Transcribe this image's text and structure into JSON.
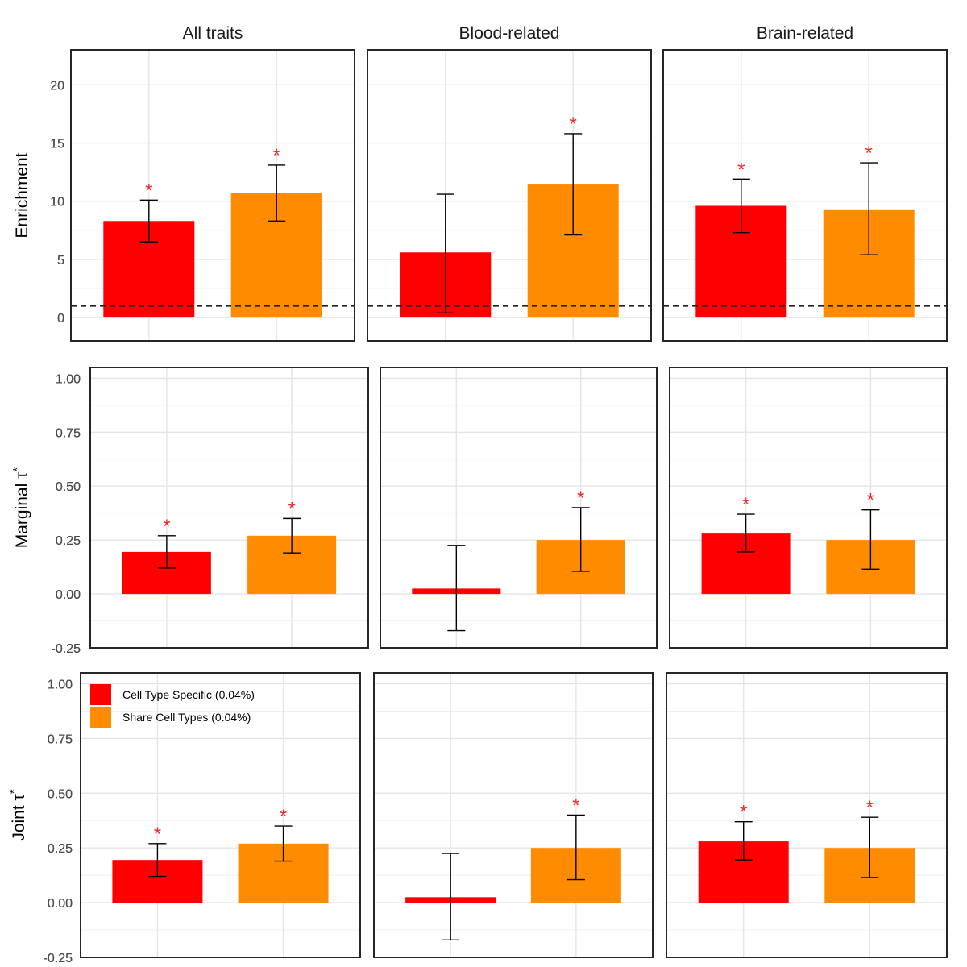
{
  "chart_data": {
    "type": "bar",
    "facet_columns": [
      "All traits",
      "Blood-related",
      "Brain-related"
    ],
    "categories": [
      "Cell Type Specific (0.04%)",
      "Share Cell Types (0.04%)"
    ],
    "colors": [
      "#ff0000",
      "#ff8c00"
    ],
    "star_color": "#ee2c2c",
    "legend": {
      "placement": "top-left of bottom-left panel",
      "entries": [
        {
          "label": "Cell Type Specific (0.04%)",
          "color": "#ff0000"
        },
        {
          "label": "Share Cell Types (0.04%)",
          "color": "#ff8c00"
        }
      ]
    },
    "rows": [
      {
        "ylabel": "Enrichment",
        "ylabel_sup": "",
        "ylim": [
          -2,
          23
        ],
        "ticks": [
          0,
          5,
          10,
          15,
          20
        ],
        "tick_labels": [
          "0",
          "5",
          "10",
          "15",
          "20"
        ],
        "reference_line": 1,
        "panels": [
          {
            "values": [
              8.3,
              10.7
            ],
            "err_low": [
              6.5,
              8.3
            ],
            "err_high": [
              10.1,
              13.1
            ],
            "significant": [
              true,
              true
            ]
          },
          {
            "values": [
              5.6,
              11.5
            ],
            "err_low": [
              0.4,
              7.1
            ],
            "err_high": [
              10.6,
              15.8
            ],
            "significant": [
              false,
              true
            ]
          },
          {
            "values": [
              9.6,
              9.3
            ],
            "err_low": [
              7.3,
              5.4
            ],
            "err_high": [
              11.9,
              13.3
            ],
            "significant": [
              true,
              true
            ]
          }
        ]
      },
      {
        "ylabel": "Marginal τ",
        "ylabel_sup": "*",
        "ylim": [
          -0.25,
          1.05
        ],
        "ticks": [
          -0.25,
          0,
          0.25,
          0.5,
          0.75,
          1.0
        ],
        "tick_labels": [
          "-0.25",
          "0.00",
          "0.25",
          "0.50",
          "0.75",
          "1.00"
        ],
        "panels": [
          {
            "values": [
              0.195,
              0.27
            ],
            "err_low": [
              0.12,
              0.19
            ],
            "err_high": [
              0.27,
              0.35
            ],
            "significant": [
              true,
              true
            ]
          },
          {
            "values": [
              0.025,
              0.25
            ],
            "err_low": [
              -0.17,
              0.105
            ],
            "err_high": [
              0.225,
              0.4
            ],
            "significant": [
              false,
              true
            ]
          },
          {
            "values": [
              0.28,
              0.25
            ],
            "err_low": [
              0.195,
              0.115
            ],
            "err_high": [
              0.37,
              0.39
            ],
            "significant": [
              true,
              true
            ]
          }
        ]
      },
      {
        "ylabel": "Joint τ",
        "ylabel_sup": "*",
        "ylim": [
          -0.25,
          1.05
        ],
        "ticks": [
          -0.25,
          0,
          0.25,
          0.5,
          0.75,
          1.0
        ],
        "tick_labels": [
          "-0.25",
          "0.00",
          "0.25",
          "0.50",
          "0.75",
          "1.00"
        ],
        "panels": [
          {
            "values": [
              0.195,
              0.27
            ],
            "err_low": [
              0.12,
              0.19
            ],
            "err_high": [
              0.27,
              0.35
            ],
            "significant": [
              true,
              true
            ]
          },
          {
            "values": [
              0.025,
              0.25
            ],
            "err_low": [
              -0.17,
              0.105
            ],
            "err_high": [
              0.225,
              0.4
            ],
            "significant": [
              false,
              true
            ]
          },
          {
            "values": [
              0.28,
              0.25
            ],
            "err_low": [
              0.195,
              0.115
            ],
            "err_high": [
              0.37,
              0.39
            ],
            "significant": [
              true,
              true
            ]
          }
        ]
      }
    ]
  }
}
